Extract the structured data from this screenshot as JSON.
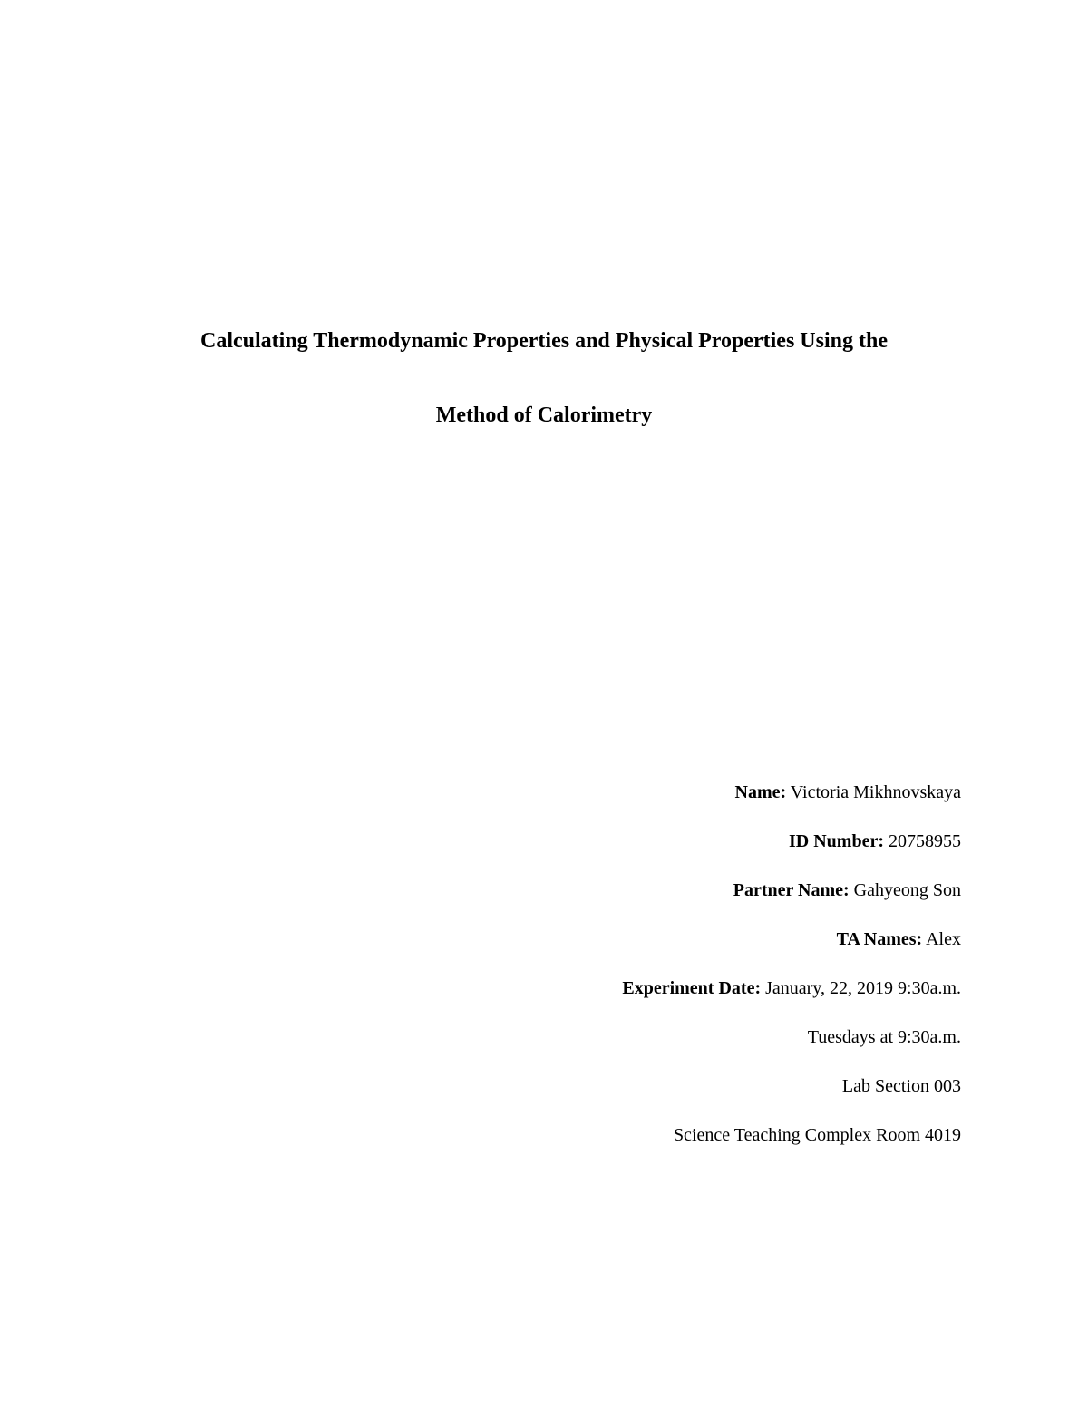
{
  "title": {
    "line1": "Calculating Thermodynamic Properties and Physical Properties Using the",
    "line2": "Method of Calorimetry"
  },
  "info": {
    "name_label": "Name:",
    "name_value": " Victoria Mikhnovskaya",
    "id_label": "ID Number:",
    "id_value": " 20758955",
    "partner_label": "Partner Name:",
    "partner_value": " Gahyeong Son",
    "ta_label": "TA Names:",
    "ta_value": " Alex",
    "date_label": "Experiment Date:",
    "date_value": " January, 22, 2019 9:30a.m.",
    "schedule": "Tuesdays at 9:30a.m.",
    "section": "Lab Section 003",
    "room": "Science Teaching Complex Room 4019"
  },
  "style": {
    "background_color": "#ffffff",
    "text_color": "#000000",
    "title_fontsize": 24,
    "title_fontweight": "bold",
    "body_fontsize": 20,
    "font_family": "Times New Roman"
  }
}
